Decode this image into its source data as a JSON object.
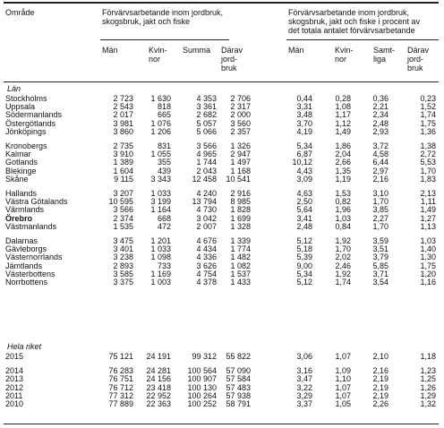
{
  "header": {
    "area": "Område",
    "group1_title": "Förvärvsarbetande inom jordbruk,\nskogsbruk, jakt och fiske",
    "group2_title": "Förvärvsarbetande inom jordbruk,\nskogsbruk, jakt och fiske i procent av\ndet totala antalet förvärvsarbetande",
    "columns": [
      "Män",
      "Kvin-\nnor",
      "Summa",
      "Därav\njord-\nbruk",
      "Män",
      "Kvin-\nnor",
      "Samt-\nliga",
      "Därav\njord-\nbruk"
    ]
  },
  "sections": [
    {
      "label": "Län",
      "groups": [
        [
          {
            "name": "Stockholms",
            "values": [
              "2 723",
              "1 630",
              "4 353",
              "2 706",
              "0,44",
              "0,28",
              "0,36",
              "0,23"
            ]
          },
          {
            "name": "Uppsala",
            "values": [
              "2 543",
              "818",
              "3 361",
              "2 317",
              "3,31",
              "1,08",
              "2,21",
              "1,52"
            ]
          },
          {
            "name": "Södermanlands",
            "values": [
              "2 017",
              "665",
              "2 682",
              "2 000",
              "3,48",
              "1,17",
              "2,34",
              "1,74"
            ]
          },
          {
            "name": "Östergötlands",
            "values": [
              "3 981",
              "1 076",
              "5 057",
              "3 560",
              "3,70",
              "1,12",
              "2,48",
              "1,75"
            ]
          },
          {
            "name": "Jönköpings",
            "values": [
              "3 860",
              "1 206",
              "5 066",
              "2 357",
              "4,19",
              "1,49",
              "2,93",
              "1,36"
            ]
          }
        ],
        [
          {
            "name": "Kronobergs",
            "values": [
              "2 735",
              "831",
              "3 566",
              "1 326",
              "5,34",
              "1,86",
              "3,72",
              "1,38"
            ]
          },
          {
            "name": "Kalmar",
            "values": [
              "3 910",
              "1 055",
              "4 965",
              "2 947",
              "6,87",
              "2,04",
              "4,58",
              "2,72"
            ]
          },
          {
            "name": "Gotlands",
            "values": [
              "1 389",
              "355",
              "1 744",
              "1 497",
              "10,12",
              "2,66",
              "6,44",
              "5,53"
            ]
          },
          {
            "name": "Blekinge",
            "values": [
              "1 604",
              "439",
              "2 043",
              "1 168",
              "4,43",
              "1,35",
              "2,97",
              "1,70"
            ]
          },
          {
            "name": "Skåne",
            "values": [
              "9 115",
              "3 343",
              "12 458",
              "10 541",
              "3,09",
              "1,19",
              "2,16",
              "1,83"
            ]
          }
        ],
        [
          {
            "name": "Hallands",
            "values": [
              "3 207",
              "1 033",
              "4 240",
              "2 916",
              "4,63",
              "1,53",
              "3,10",
              "2,13"
            ]
          },
          {
            "name": "Västra Götalands",
            "values": [
              "10 595",
              "3 199",
              "13 794",
              "8 985",
              "2,50",
              "0,82",
              "1,70",
              "1,11"
            ]
          },
          {
            "name": "Värmlands",
            "values": [
              "3 566",
              "1 164",
              "4 730",
              "1 828",
              "5,64",
              "1,96",
              "3,85",
              "1,49"
            ]
          },
          {
            "name": "Örebro",
            "values": [
              "2 374",
              "668",
              "3 042",
              "1 699",
              "3,41",
              "1,03",
              "2,27",
              "1,27"
            ]
          },
          {
            "name": "Västmanlands",
            "values": [
              "1 535",
              "472",
              "2 007",
              "1 328",
              "2,48",
              "0,84",
              "1,70",
              "1,13"
            ]
          }
        ],
        [
          {
            "name": "Dalarnas",
            "values": [
              "3 475",
              "1 201",
              "4 676",
              "1 339",
              "5,12",
              "1,92",
              "3,59",
              "1,03"
            ]
          },
          {
            "name": "Gävleborgs",
            "values": [
              "3 401",
              "1 033",
              "4 434",
              "1 774",
              "5,18",
              "1,70",
              "3,51",
              "1,40"
            ]
          },
          {
            "name": "Västernorrlands",
            "values": [
              "3 238",
              "1 098",
              "4 336",
              "1 482",
              "5,39",
              "2,02",
              "3,79",
              "1,30"
            ]
          },
          {
            "name": "Jämtlands",
            "values": [
              "2 893",
              "733",
              "3 626",
              "1 082",
              "9,00",
              "2,46",
              "5,85",
              "1,75"
            ]
          },
          {
            "name": "Västerbottens",
            "values": [
              "3 585",
              "1 169",
              "4 754",
              "1 537",
              "5,34",
              "1,92",
              "3,71",
              "1,20"
            ]
          },
          {
            "name": "Norrbottens",
            "values": [
              "3 375",
              "1 003",
              "4 378",
              "1 433",
              "5,12",
              "1,74",
              "3,54",
              "1,16"
            ]
          }
        ]
      ]
    },
    {
      "label": "Hela riket",
      "groups": [
        [
          {
            "name": "2015",
            "values": [
              "75 121",
              "24 191",
              "99 312",
              "55 822",
              "3,06",
              "1,07",
              "2,10",
              "1,18"
            ]
          }
        ],
        [
          {
            "name": "2014",
            "values": [
              "76 283",
              "24 281",
              "100 564",
              "57 090",
              "3,16",
              "1,09",
              "2,16",
              "1,23"
            ]
          },
          {
            "name": "2013",
            "values": [
              "76 751",
              "24 156",
              "100 907",
              "57 584",
              "3,47",
              "1,10",
              "2,19",
              "1,25"
            ]
          },
          {
            "name": "2012",
            "values": [
              "76 712",
              "23 418",
              "100 130",
              "57 483",
              "3,22",
              "1,07",
              "2,19",
              "1,26"
            ]
          },
          {
            "name": "2011",
            "values": [
              "77 312",
              "22 952",
              "100 264",
              "57 938",
              "3,29",
              "1,07",
              "2,19",
              "1,29"
            ]
          },
          {
            "name": "2010",
            "values": [
              "77 889",
              "22 363",
              "100 252",
              "58 791",
              "3,37",
              "1,05",
              "2,26",
              "1,32"
            ]
          }
        ]
      ]
    }
  ]
}
